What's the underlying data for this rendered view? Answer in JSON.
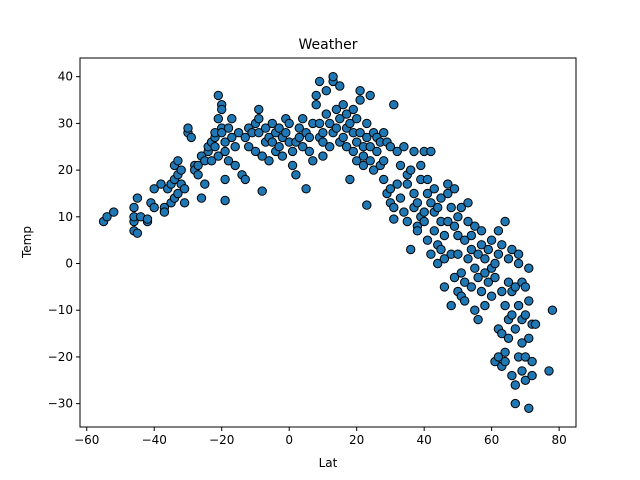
{
  "chart_data": {
    "type": "scatter",
    "title": "Weather",
    "xlabel": "Lat",
    "ylabel": "Temp",
    "xlim": [
      -62,
      85
    ],
    "ylim": [
      -35,
      44
    ],
    "xticks": [
      -60,
      -40,
      -20,
      0,
      20,
      40,
      60,
      80
    ],
    "yticks": [
      -30,
      -20,
      -10,
      0,
      10,
      20,
      30,
      40
    ],
    "grid": false,
    "legend": "none",
    "marker_color": "#1f77b4",
    "marker_edge_color": "#000000",
    "series": [
      {
        "points": [
          [
            -55,
            9
          ],
          [
            -54,
            10
          ],
          [
            -52,
            11
          ],
          [
            -46,
            7
          ],
          [
            -46,
            9
          ],
          [
            -46,
            10
          ],
          [
            -46,
            12
          ],
          [
            -45,
            14
          ],
          [
            -45,
            6.5
          ],
          [
            -44,
            10
          ],
          [
            -42,
            9
          ],
          [
            -42,
            9.5
          ],
          [
            -41,
            13
          ],
          [
            -40,
            12
          ],
          [
            -40,
            16
          ],
          [
            -38,
            17
          ],
          [
            -37,
            12
          ],
          [
            -37,
            11
          ],
          [
            -36,
            16
          ],
          [
            -35,
            13
          ],
          [
            -35,
            17
          ],
          [
            -34,
            14
          ],
          [
            -34,
            18
          ],
          [
            -34,
            21
          ],
          [
            -33,
            15
          ],
          [
            -33,
            19
          ],
          [
            -33,
            22
          ],
          [
            -32,
            20
          ],
          [
            -32,
            17
          ],
          [
            -31,
            13
          ],
          [
            -31,
            16
          ],
          [
            -30,
            28
          ],
          [
            -30,
            29
          ],
          [
            -29,
            27
          ],
          [
            -28,
            21
          ],
          [
            -28,
            20
          ],
          [
            -27,
            19
          ],
          [
            -27,
            21
          ],
          [
            -26,
            14
          ],
          [
            -26,
            23
          ],
          [
            -25,
            22
          ],
          [
            -25,
            17
          ],
          [
            -24,
            24
          ],
          [
            -24,
            25
          ],
          [
            -23,
            22
          ],
          [
            -23,
            26
          ],
          [
            -22,
            27
          ],
          [
            -22,
            25
          ],
          [
            -22,
            28
          ],
          [
            -21,
            23
          ],
          [
            -21,
            36
          ],
          [
            -21,
            31
          ],
          [
            -20,
            34
          ],
          [
            -20,
            33
          ],
          [
            -20,
            29
          ],
          [
            -20,
            28
          ],
          [
            -19,
            26
          ],
          [
            -19,
            24
          ],
          [
            -19,
            13.5
          ],
          [
            -19,
            18
          ],
          [
            -18,
            22
          ],
          [
            -18,
            29
          ],
          [
            -17,
            31
          ],
          [
            -17,
            27
          ],
          [
            -16,
            25
          ],
          [
            -16,
            21
          ],
          [
            -15,
            28
          ],
          [
            -14,
            19
          ],
          [
            -13,
            18
          ],
          [
            -13,
            27
          ],
          [
            -12,
            29
          ],
          [
            -12,
            25
          ],
          [
            -11,
            28
          ],
          [
            -10,
            24
          ],
          [
            -10,
            30
          ],
          [
            -9,
            33
          ],
          [
            -9,
            28
          ],
          [
            -9,
            31
          ],
          [
            -8,
            15.5
          ],
          [
            -8,
            23
          ],
          [
            -7,
            26
          ],
          [
            -7,
            29
          ],
          [
            -6,
            22
          ],
          [
            -6,
            27
          ],
          [
            -5,
            30
          ],
          [
            -5,
            26
          ],
          [
            -4,
            24
          ],
          [
            -4,
            28
          ],
          [
            -3,
            29
          ],
          [
            -3,
            25
          ],
          [
            -2,
            23
          ],
          [
            -2,
            27
          ],
          [
            -1,
            28
          ],
          [
            -1,
            31
          ],
          [
            0,
            26
          ],
          [
            0,
            30
          ],
          [
            1,
            21
          ],
          [
            1,
            24
          ],
          [
            2,
            19
          ],
          [
            2,
            26
          ],
          [
            3,
            27
          ],
          [
            3,
            29
          ],
          [
            4,
            25
          ],
          [
            4,
            31
          ],
          [
            5,
            28
          ],
          [
            5,
            16
          ],
          [
            6,
            24
          ],
          [
            6,
            27
          ],
          [
            7,
            30
          ],
          [
            7,
            22
          ],
          [
            8,
            34
          ],
          [
            8,
            36
          ],
          [
            9,
            39
          ],
          [
            9,
            30
          ],
          [
            9,
            27
          ],
          [
            10,
            26
          ],
          [
            10,
            23
          ],
          [
            10,
            28
          ],
          [
            11,
            37
          ],
          [
            11,
            32
          ],
          [
            12,
            30
          ],
          [
            12,
            25
          ],
          [
            13,
            39
          ],
          [
            13,
            40
          ],
          [
            13,
            28
          ],
          [
            14,
            29
          ],
          [
            14,
            33
          ],
          [
            15,
            31
          ],
          [
            15,
            38
          ],
          [
            15,
            26
          ],
          [
            16,
            27
          ],
          [
            16,
            34
          ],
          [
            17,
            25
          ],
          [
            17,
            29
          ],
          [
            17,
            32
          ],
          [
            18,
            18
          ],
          [
            18,
            30
          ],
          [
            19,
            24
          ],
          [
            19,
            28
          ],
          [
            19,
            33
          ],
          [
            20,
            22
          ],
          [
            20,
            26
          ],
          [
            20,
            31
          ],
          [
            21,
            37
          ],
          [
            21,
            35
          ],
          [
            21,
            28
          ],
          [
            22,
            25
          ],
          [
            22,
            23
          ],
          [
            22,
            21
          ],
          [
            23,
            30
          ],
          [
            23,
            12.5
          ],
          [
            23,
            27
          ],
          [
            24,
            22
          ],
          [
            24,
            25
          ],
          [
            24,
            36
          ],
          [
            25,
            20
          ],
          [
            25,
            28
          ],
          [
            26,
            27
          ],
          [
            26,
            24
          ],
          [
            27,
            21
          ],
          [
            27,
            26
          ],
          [
            28,
            28
          ],
          [
            28,
            18
          ],
          [
            28,
            22
          ],
          [
            29,
            15
          ],
          [
            29,
            26
          ],
          [
            30,
            13
          ],
          [
            30,
            16
          ],
          [
            30,
            25
          ],
          [
            31,
            34
          ],
          [
            31,
            12
          ],
          [
            31,
            9.5
          ],
          [
            32,
            17
          ],
          [
            32,
            24
          ],
          [
            33,
            14
          ],
          [
            33,
            21
          ],
          [
            34,
            25
          ],
          [
            34,
            11
          ],
          [
            35,
            17
          ],
          [
            35,
            9
          ],
          [
            35,
            19
          ],
          [
            36,
            20
          ],
          [
            36,
            3
          ],
          [
            37,
            12
          ],
          [
            37,
            15
          ],
          [
            37,
            24
          ],
          [
            38,
            8
          ],
          [
            38,
            13
          ],
          [
            38,
            7
          ],
          [
            39,
            18
          ],
          [
            39,
            10
          ],
          [
            39,
            21
          ],
          [
            40,
            11
          ],
          [
            40,
            9
          ],
          [
            40,
            24
          ],
          [
            41,
            5
          ],
          [
            41,
            15
          ],
          [
            41,
            18
          ],
          [
            42,
            2
          ],
          [
            42,
            13
          ],
          [
            42,
            24
          ],
          [
            43,
            7
          ],
          [
            43,
            11
          ],
          [
            43,
            16
          ],
          [
            44,
            0
          ],
          [
            44,
            4
          ],
          [
            44,
            12
          ],
          [
            45,
            3
          ],
          [
            45,
            9
          ],
          [
            45,
            14
          ],
          [
            46,
            1
          ],
          [
            46,
            6
          ],
          [
            46,
            -5
          ],
          [
            47,
            9
          ],
          [
            47,
            17
          ],
          [
            47,
            15
          ],
          [
            48,
            -9
          ],
          [
            48,
            2
          ],
          [
            48,
            12
          ],
          [
            49,
            16
          ],
          [
            49,
            -3
          ],
          [
            49,
            8
          ],
          [
            50,
            -6
          ],
          [
            50,
            2
          ],
          [
            50,
            6
          ],
          [
            50,
            10
          ],
          [
            51,
            -2
          ],
          [
            51,
            -7
          ],
          [
            51,
            12
          ],
          [
            52,
            -4
          ],
          [
            52,
            5
          ],
          [
            52,
            -8
          ],
          [
            53,
            1
          ],
          [
            53,
            13
          ],
          [
            53,
            9
          ],
          [
            54,
            -5
          ],
          [
            54,
            3
          ],
          [
            54,
            6
          ],
          [
            55,
            -1
          ],
          [
            55,
            -10
          ],
          [
            55,
            8
          ],
          [
            56,
            2
          ],
          [
            56,
            -12
          ],
          [
            56,
            -3
          ],
          [
            57,
            4
          ],
          [
            57,
            -6
          ],
          [
            57,
            7
          ],
          [
            58,
            -2
          ],
          [
            58,
            -9
          ],
          [
            58,
            1
          ],
          [
            59,
            -4
          ],
          [
            59,
            3
          ],
          [
            60,
            -1
          ],
          [
            60,
            -7
          ],
          [
            60,
            5
          ],
          [
            61,
            -21
          ],
          [
            61,
            -3
          ],
          [
            61,
            0
          ],
          [
            62,
            -14
          ],
          [
            62,
            -20
          ],
          [
            62,
            2
          ],
          [
            62,
            7
          ],
          [
            63,
            -15
          ],
          [
            63,
            -22
          ],
          [
            63,
            4
          ],
          [
            63,
            -6
          ],
          [
            64,
            -19
          ],
          [
            64,
            -21
          ],
          [
            64,
            9
          ],
          [
            64,
            -9
          ],
          [
            65,
            -12
          ],
          [
            65,
            -16
          ],
          [
            65,
            1
          ],
          [
            65,
            -4
          ],
          [
            66,
            -24
          ],
          [
            66,
            -6
          ],
          [
            66,
            -11
          ],
          [
            66,
            3
          ],
          [
            67,
            -26
          ],
          [
            67,
            -30
          ],
          [
            67,
            -14
          ],
          [
            67,
            -5
          ],
          [
            68,
            -20
          ],
          [
            68,
            -9
          ],
          [
            68,
            0
          ],
          [
            68,
            2
          ],
          [
            69,
            -23
          ],
          [
            69,
            -12
          ],
          [
            69,
            -17
          ],
          [
            69,
            -4
          ],
          [
            70,
            -25
          ],
          [
            70,
            -20
          ],
          [
            70,
            -11
          ],
          [
            70,
            -5
          ],
          [
            71,
            -31
          ],
          [
            71,
            -16
          ],
          [
            71,
            -8
          ],
          [
            71,
            -1
          ],
          [
            72,
            -21
          ],
          [
            72,
            -24
          ],
          [
            72,
            -13
          ],
          [
            73,
            -13
          ],
          [
            77,
            -23
          ],
          [
            78,
            -10
          ]
        ]
      }
    ]
  }
}
